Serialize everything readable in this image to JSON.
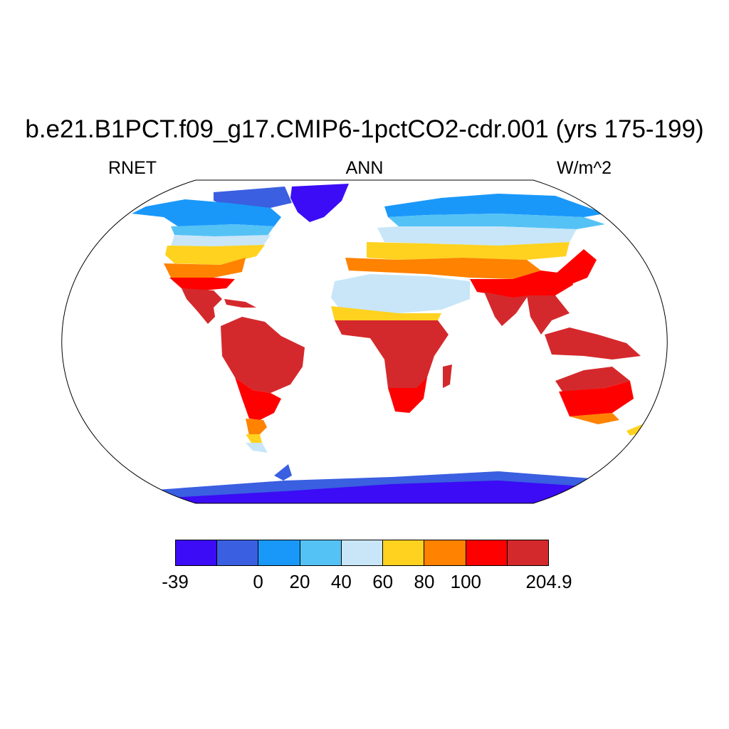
{
  "title": "b.e21.B1PCT.f09_g17.CMIP6-1pctCO2-cdr.001 (yrs 175-199)",
  "left_label": "RNET",
  "center_label": "ANN",
  "right_label": "W/m^2",
  "map": {
    "projection": "robinson",
    "variable": "RNET",
    "season": "ANN",
    "units": "W/m^2"
  },
  "colorbar": {
    "colors": [
      "#3b0cf5",
      "#3a5fe0",
      "#1a98fa",
      "#55c2f5",
      "#c8e6f8",
      "#ffd21f",
      "#ff8200",
      "#ff0000",
      "#d4292c"
    ],
    "tick_labels": [
      "-39",
      "0",
      "20",
      "40",
      "60",
      "80",
      "100",
      "204.9"
    ]
  }
}
